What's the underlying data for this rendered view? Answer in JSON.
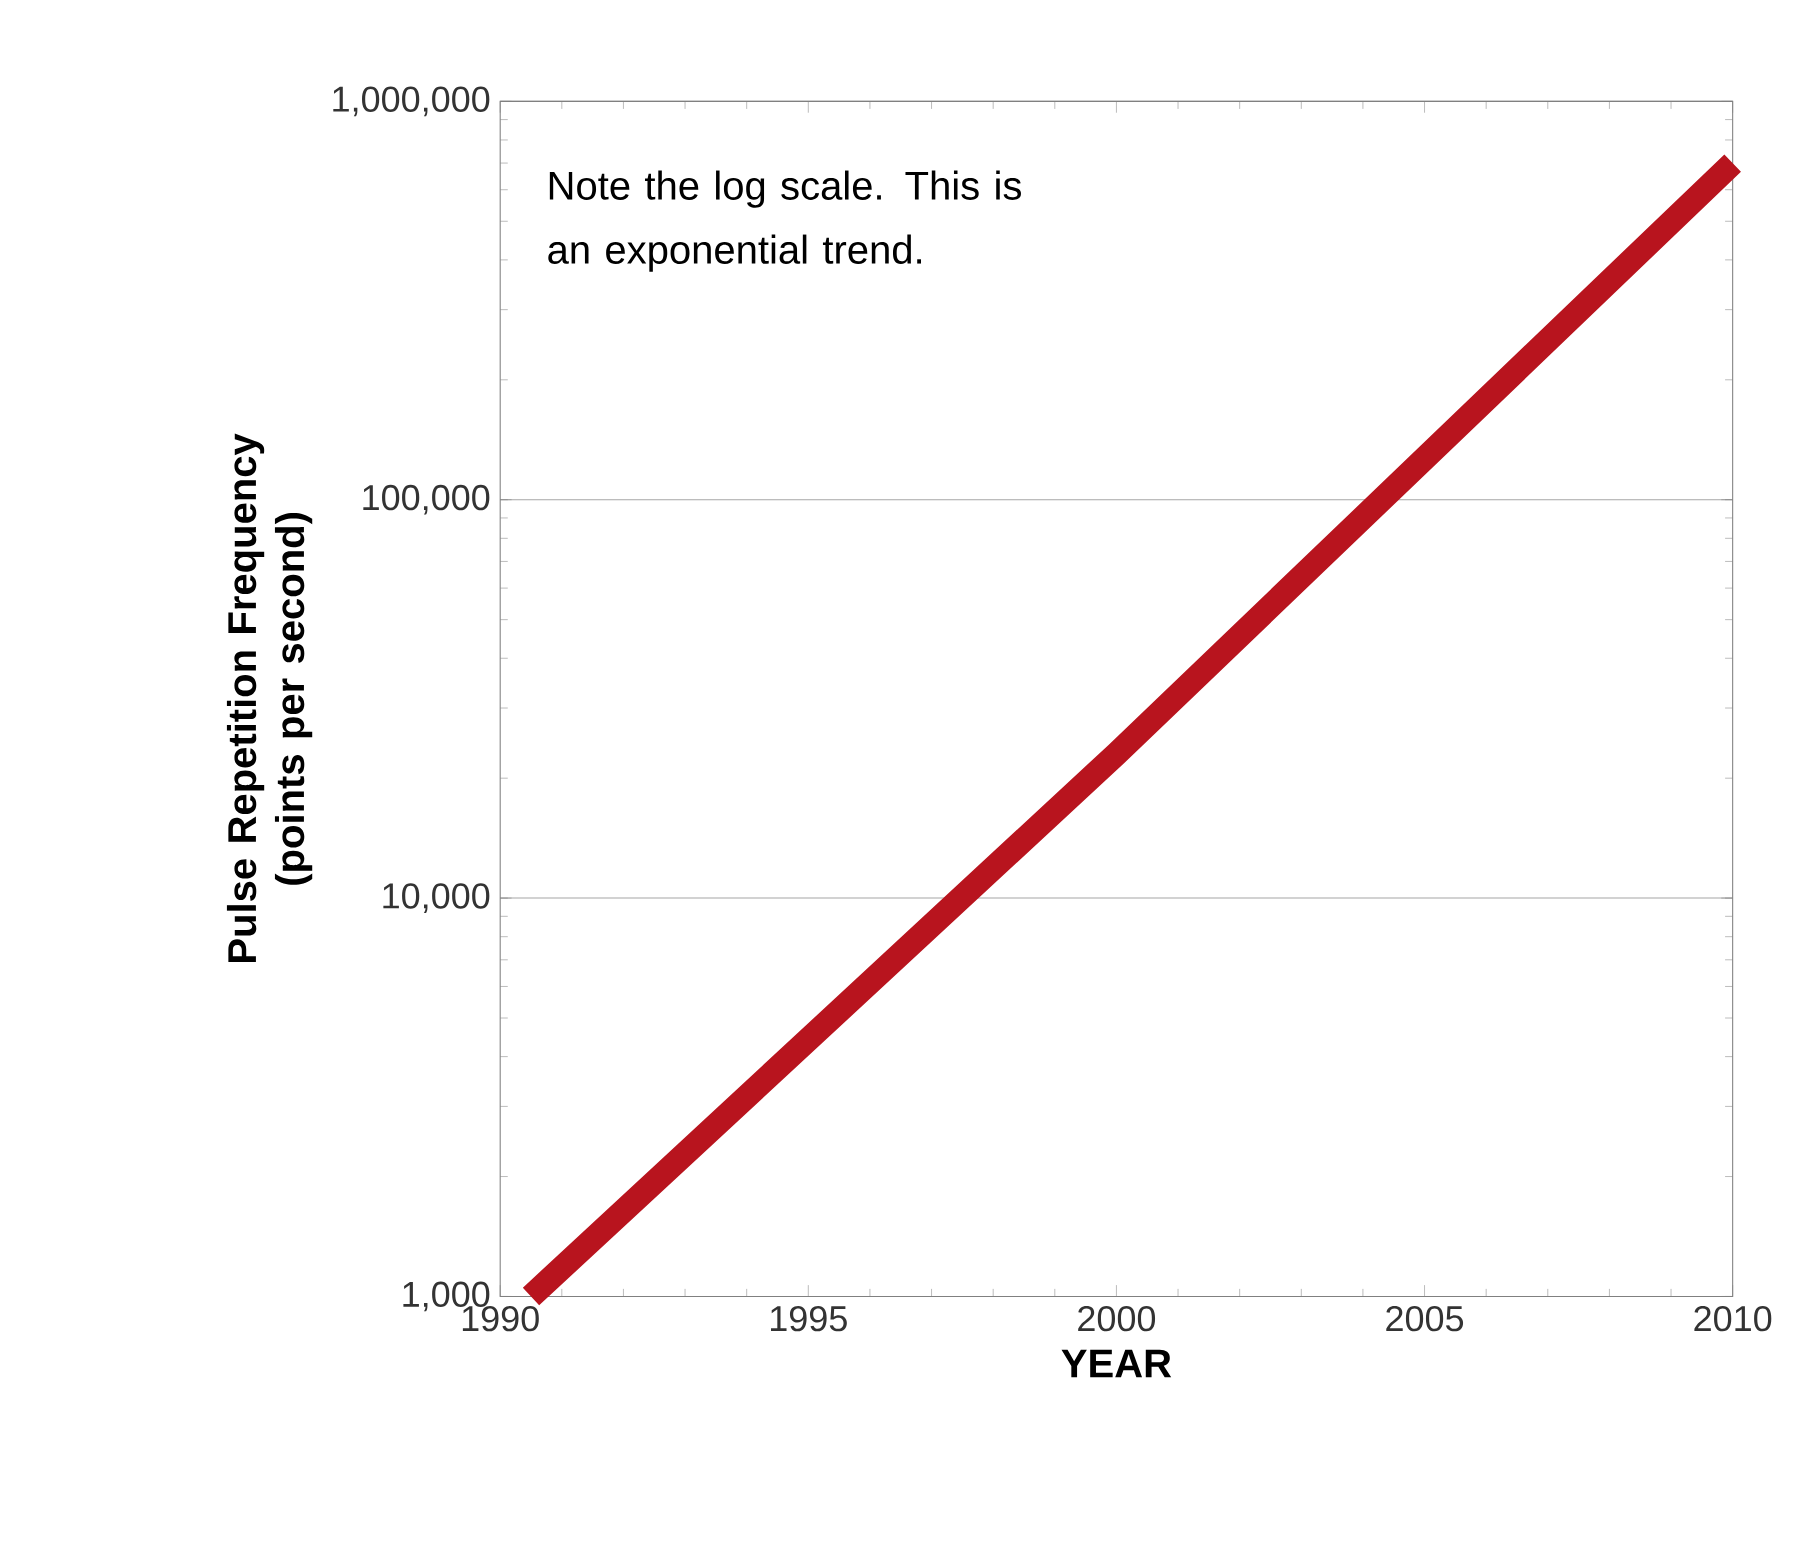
{
  "chart_data": {
    "type": "line",
    "xlabel": "YEAR",
    "ylabel": "Pulse Repetition Frequency (points per second)",
    "annotations": [
      "Note the log scale. This is an exponential trend."
    ],
    "x": [
      1990.5,
      2000,
      2010
    ],
    "series": [
      {
        "color": "#b8141e",
        "values": [
          1000,
          23000,
          700000
        ]
      }
    ],
    "xlim": [
      1990,
      2010
    ],
    "xticks": [
      1990,
      1995,
      2000,
      2005,
      2010
    ],
    "ylim": [
      1000,
      1000000
    ],
    "yticks": [
      {
        "value": 1000,
        "label": "1,000"
      },
      {
        "value": 10000,
        "label": "10,000"
      },
      {
        "value": 100000,
        "label": "100,000"
      },
      {
        "value": 1000000,
        "label": "1,000,000"
      }
    ],
    "log": "y",
    "grid": "y"
  }
}
